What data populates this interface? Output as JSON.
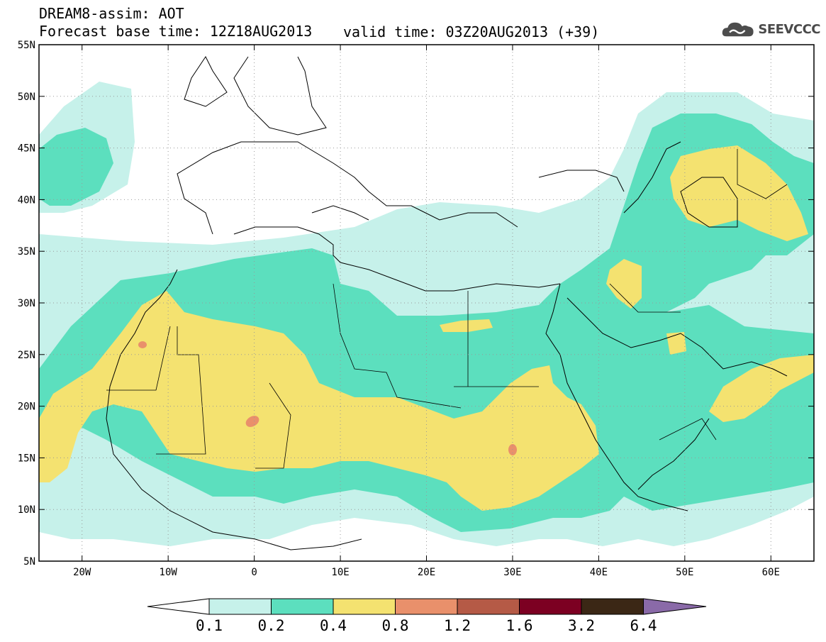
{
  "header": {
    "line1": "DREAM8-assim: AOT",
    "line2": "Forecast base time: 12Z18AUG2013",
    "valid": "valid time: 03Z20AUG2013 (+39)"
  },
  "logo": {
    "icon": "cloud-icon",
    "text": "SEEVCCC"
  },
  "map": {
    "lon_range": [
      -25,
      65
    ],
    "lat_range": [
      5,
      55
    ],
    "lat_ticks": [
      "5N",
      "10N",
      "15N",
      "20N",
      "25N",
      "30N",
      "35N",
      "40N",
      "45N",
      "50N",
      "55N"
    ],
    "lon_ticks": [
      "20W",
      "10W",
      "0",
      "10E",
      "20E",
      "30E",
      "40E",
      "50E",
      "60E"
    ],
    "grid": "dotted"
  },
  "colorbar": {
    "labels": [
      "0.1",
      "0.2",
      "0.4",
      "0.8",
      "1.2",
      "1.6",
      "3.2",
      "6.4"
    ],
    "colors": [
      "#c6f1ea",
      "#5cdfbe",
      "#f4e270",
      "#e9906b",
      "#b55a46",
      "#7c0022",
      "#3b2715",
      "#8a6aa8"
    ]
  }
}
